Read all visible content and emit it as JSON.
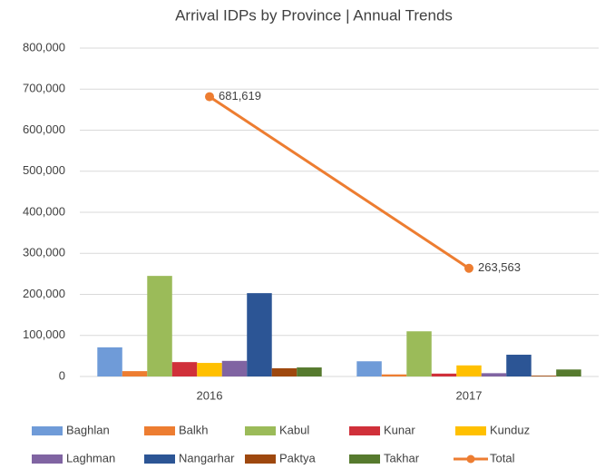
{
  "chart_data": {
    "type": "bar",
    "title": "Arrival IDPs by Province | Annual Trends",
    "categories": [
      "2016",
      "2017"
    ],
    "series": [
      {
        "name": "Baghlan",
        "color": "#6f9bd8",
        "values": [
          71000,
          37000
        ]
      },
      {
        "name": "Balkh",
        "color": "#ed7d31",
        "values": [
          13000,
          5000
        ]
      },
      {
        "name": "Kabul",
        "color": "#9bbb59",
        "values": [
          245000,
          110000
        ]
      },
      {
        "name": "Kunar",
        "color": "#d0303a",
        "values": [
          35000,
          7000
        ]
      },
      {
        "name": "Kunduz",
        "color": "#ffc000",
        "values": [
          33000,
          27000
        ]
      },
      {
        "name": "Laghman",
        "color": "#8064a2",
        "values": [
          38000,
          8000
        ]
      },
      {
        "name": "Nangarhar",
        "color": "#2c5595",
        "values": [
          203000,
          53000
        ]
      },
      {
        "name": "Paktya",
        "color": "#9e480e",
        "values": [
          20000,
          2000
        ]
      },
      {
        "name": "Takhar",
        "color": "#567a2e",
        "values": [
          22000,
          17000
        ]
      },
      {
        "name": "Total",
        "type": "line",
        "color": "#ed7d31",
        "values": [
          681619,
          263563
        ],
        "value_labels": [
          "681,619",
          "263,563"
        ]
      }
    ],
    "ylim": [
      0,
      800000
    ],
    "yticks": [
      0,
      {
        "value": 100000,
        "label": "100,000"
      },
      {
        "value": 200000,
        "label": "200,000"
      },
      {
        "value": 300000,
        "label": "300,000"
      },
      {
        "value": 400000,
        "label": "400,000"
      },
      {
        "value": 500000,
        "label": "500,000"
      },
      {
        "value": 600000,
        "label": "600,000"
      },
      {
        "value": 700000,
        "label": "700,000"
      },
      {
        "value": 800000,
        "label": "800,000"
      }
    ],
    "grid": true,
    "legend": "bottom"
  }
}
